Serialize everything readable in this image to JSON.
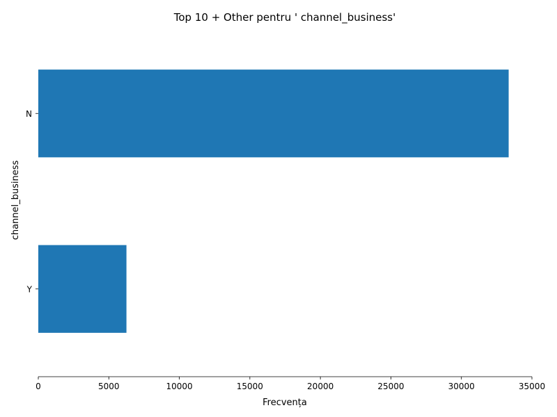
{
  "chart_data": {
    "type": "bar",
    "orientation": "horizontal",
    "title": "Top 10 + Other pentru ' channel_business'",
    "xlabel": "Frecvența",
    "ylabel": "channel_business",
    "categories": [
      "N",
      "Y"
    ],
    "values": [
      33350,
      6250
    ],
    "xlim": [
      0,
      35000
    ],
    "xticks": [
      "0",
      "5000",
      "10000",
      "15000",
      "20000",
      "25000",
      "30000",
      "35000"
    ],
    "bar_color": "#1f77b4",
    "grid": false,
    "legend": "none"
  }
}
